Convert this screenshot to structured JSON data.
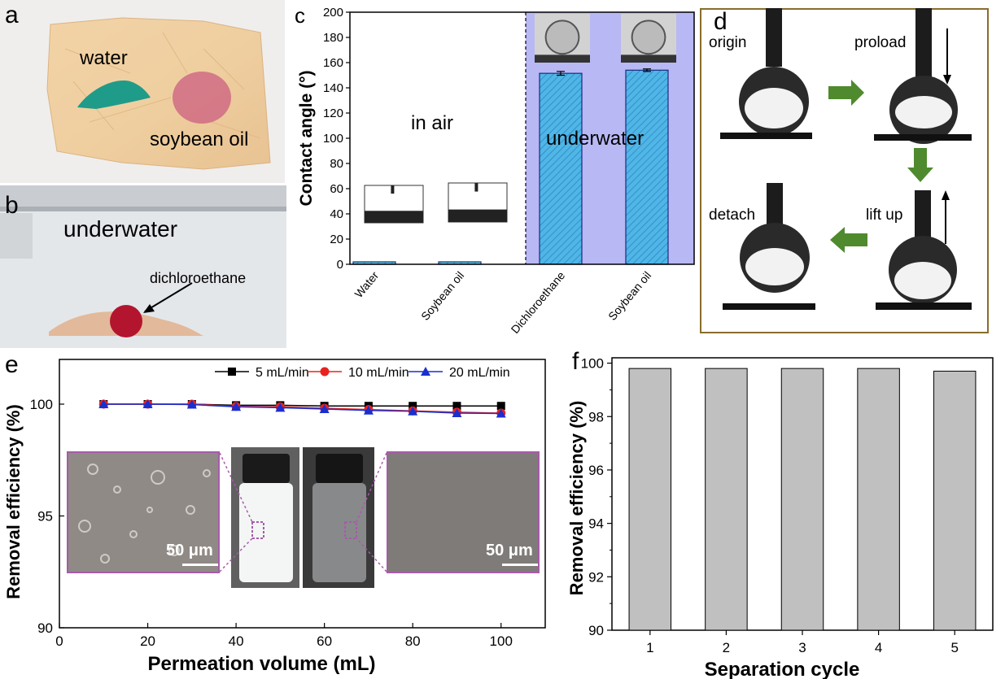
{
  "panels": {
    "a": {
      "letter": "a",
      "labels": [
        "water",
        "soybean oil"
      ]
    },
    "b": {
      "letter": "b",
      "labels": [
        "underwater",
        "dichloroethane"
      ]
    },
    "c": {
      "letter": "c",
      "annotations": [
        "in air",
        "underwater"
      ]
    },
    "d": {
      "letter": "d",
      "labels": [
        "origin",
        "proload",
        "detach",
        "lift up"
      ]
    },
    "e": {
      "letter": "e",
      "scale_bars": [
        "50 μm",
        "50 μm"
      ]
    },
    "f": {
      "letter": "f"
    }
  },
  "chart_data": [
    {
      "panel": "c",
      "type": "bar",
      "categories": [
        "Water",
        "Soybean oil",
        "Dichloroethane",
        "Soybean oil"
      ],
      "values": [
        0,
        0,
        151.5,
        154
      ],
      "errors": [
        0,
        0,
        1.5,
        1
      ],
      "ylabel": "Contact angle (°)",
      "ylim": [
        0,
        200
      ],
      "yticks": [
        0,
        20,
        40,
        60,
        80,
        100,
        120,
        140,
        160,
        180,
        200
      ],
      "regions": [
        "in air",
        "underwater"
      ],
      "colors": {
        "bar": "#4fb6e6",
        "bar_air": "#5fd3d8",
        "underwater_bg": "#b8b8f4"
      }
    },
    {
      "panel": "e",
      "type": "line",
      "xlabel": "Permeation volume (mL)",
      "ylabel": "Removal efficiency (%)",
      "xlim": [
        0,
        110
      ],
      "ylim": [
        90,
        102
      ],
      "xticks": [
        0,
        20,
        40,
        60,
        80,
        100
      ],
      "yticks": [
        90,
        95,
        100
      ],
      "x": [
        10,
        20,
        30,
        40,
        50,
        60,
        70,
        80,
        90,
        100
      ],
      "legend_position": "top-right",
      "series": [
        {
          "name": "5 mL/min",
          "color": "#000000",
          "marker": "square",
          "values": [
            100,
            100,
            100,
            99.95,
            99.95,
            99.92,
            99.92,
            99.92,
            99.92,
            99.92
          ]
        },
        {
          "name": "10 mL/min",
          "color": "#e8231f",
          "marker": "circle",
          "values": [
            100,
            100,
            100,
            99.9,
            99.88,
            99.82,
            99.76,
            99.7,
            99.64,
            99.6
          ]
        },
        {
          "name": "20 mL/min",
          "color": "#1a2fd0",
          "marker": "triangle",
          "values": [
            100,
            100,
            99.98,
            99.88,
            99.84,
            99.78,
            99.72,
            99.68,
            99.6,
            99.58
          ]
        }
      ]
    },
    {
      "panel": "f",
      "type": "bar",
      "categories": [
        "1",
        "2",
        "3",
        "4",
        "5"
      ],
      "values": [
        99.8,
        99.8,
        99.8,
        99.8,
        99.7
      ],
      "xlabel": "Separation cycle",
      "ylabel": "Removal efficiency (%)",
      "ylim": [
        90,
        100.2
      ],
      "yticks": [
        90,
        92,
        94,
        96,
        98,
        100
      ],
      "colors": {
        "bar": "#c0c0c0"
      }
    }
  ]
}
